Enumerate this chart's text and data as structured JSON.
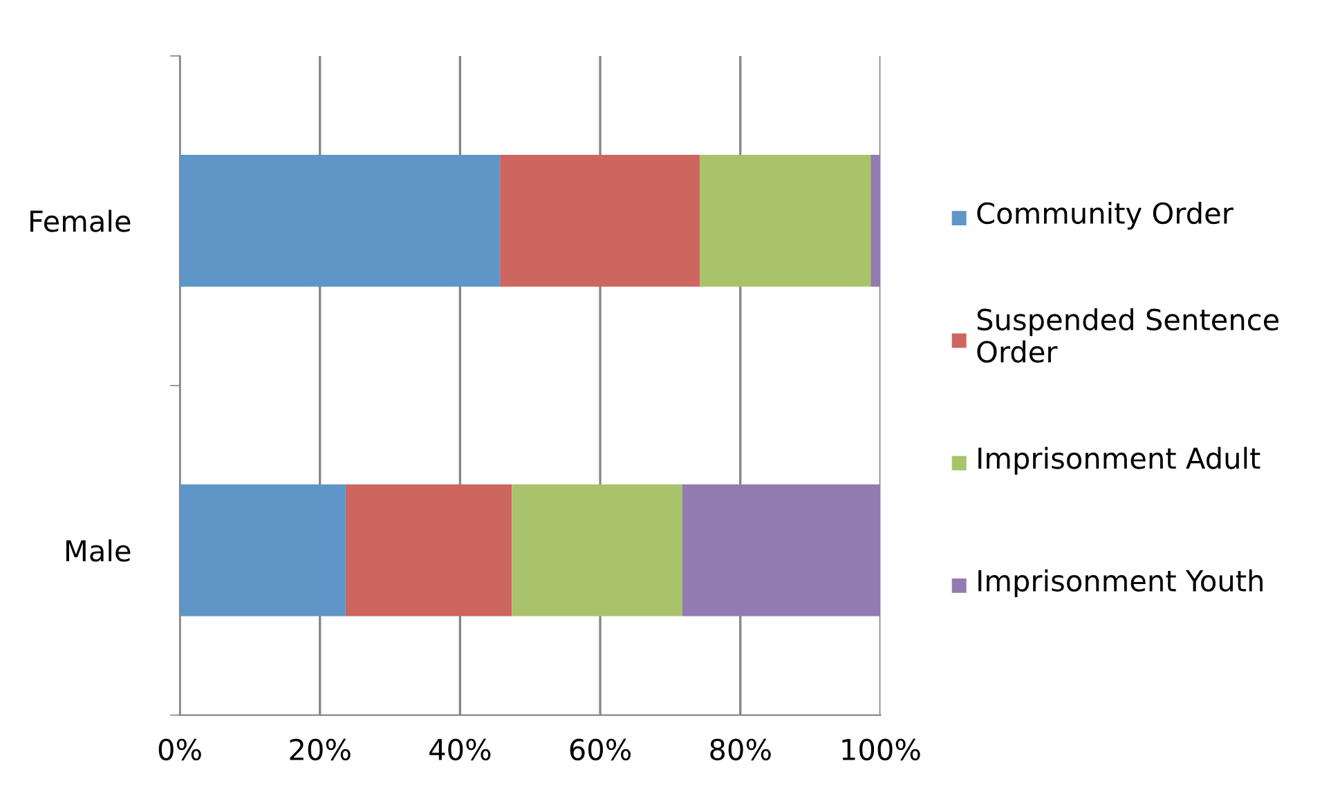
{
  "chart_data": {
    "type": "bar",
    "orientation": "horizontal",
    "stacked": true,
    "categories": [
      "Female",
      "Male"
    ],
    "series": [
      {
        "name": "Community Order",
        "color": "#5f96c8",
        "values": [
          45.7,
          23.6
        ]
      },
      {
        "name": "Suspended Sentence Order",
        "color": "#cd665f",
        "values": [
          28.5,
          23.8
        ]
      },
      {
        "name": "Imprisonment Adult",
        "color": "#a9c36a",
        "values": [
          24.4,
          24.3
        ]
      },
      {
        "name": "Imprisonment Youth",
        "color": "#927bb0",
        "values": [
          1.4,
          28.3
        ]
      }
    ],
    "xlim": [
      0,
      100
    ],
    "xticks": [
      {
        "value": 0,
        "label": "0%"
      },
      {
        "value": 20,
        "label": "20%"
      },
      {
        "value": 40,
        "label": "40%"
      },
      {
        "value": 60,
        "label": "60%"
      },
      {
        "value": 80,
        "label": "80%"
      },
      {
        "value": 100,
        "label": "100%"
      }
    ],
    "grid": "x",
    "legend": "right"
  }
}
